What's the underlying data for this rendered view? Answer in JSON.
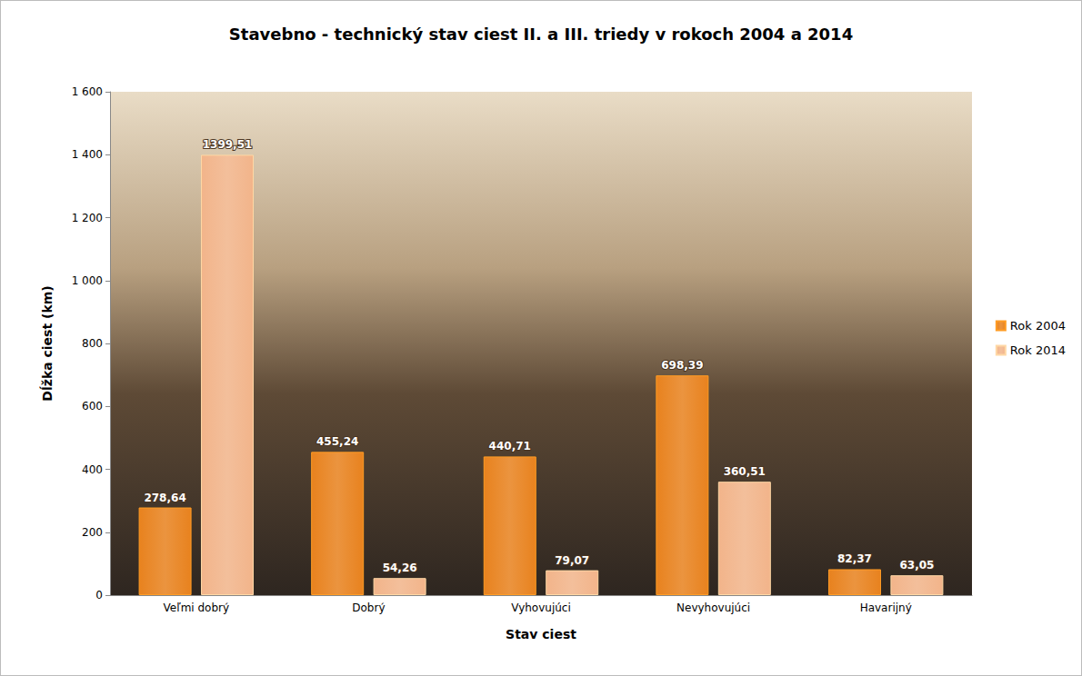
{
  "chart_data": {
    "type": "bar",
    "title": "Stavebno - technický stav ciest II. a III. triedy v rokoch 2004 a 2014",
    "x_label": "Stav ciest",
    "y_label": "Dĺžka ciest (km)",
    "categories": [
      "Veľmi dobrý",
      "Dobrý",
      "Vyhovujúci",
      "Nevyhovujúci",
      "Havarijný"
    ],
    "series": [
      {
        "name": "Rok 2004",
        "color": "#e8821e",
        "values": [
          278.64,
          455.24,
          440.71,
          698.39,
          82.37
        ],
        "value_labels": [
          "278,64",
          "455,24",
          "440,71",
          "698,39",
          "82,37"
        ]
      },
      {
        "name": "Rok 2014",
        "color": "#f2b48a",
        "values": [
          1399.51,
          54.26,
          79.07,
          360.51,
          63.05
        ],
        "value_labels": [
          "1399,51",
          "54,26",
          "79,07",
          "360,51",
          "63,05"
        ]
      }
    ],
    "ylim": [
      0,
      1600
    ],
    "yticks": [
      0,
      200,
      400,
      600,
      800,
      {
        "value": 1000,
        "label": "1 000"
      },
      {
        "value": 1200,
        "label": "1 200"
      },
      {
        "value": 1400,
        "label": "1 400"
      },
      {
        "value": 1600,
        "label": "1 600"
      }
    ],
    "grid": false,
    "legend": "right",
    "data_labels": true
  }
}
